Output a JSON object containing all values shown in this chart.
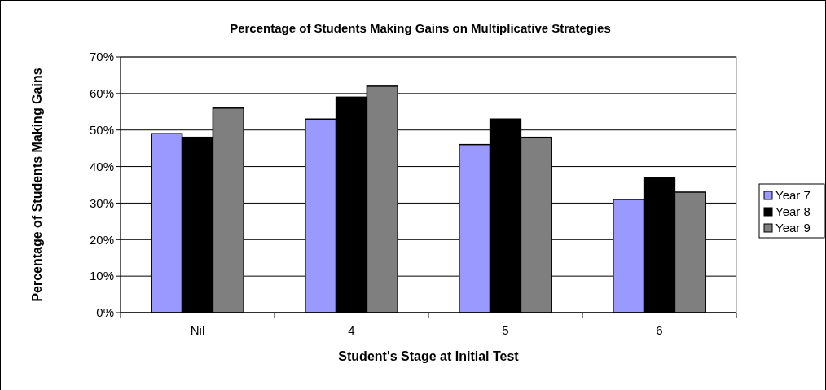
{
  "chart_data": {
    "type": "bar",
    "title": "Percentage of Students Making Gains on Multiplicative Strategies",
    "xlabel": "Student's Stage at Initial Test",
    "ylabel": "Percentage of Students Making Gains",
    "categories": [
      "Nil",
      "4",
      "5",
      "6"
    ],
    "series": [
      {
        "name": "Year 7",
        "color": "#9999ff",
        "values": [
          49,
          53,
          46,
          31
        ]
      },
      {
        "name": "Year 8",
        "color": "#000000",
        "values": [
          48,
          59,
          53,
          37
        ]
      },
      {
        "name": "Year 9",
        "color": "#7f7f7f",
        "values": [
          56,
          62,
          48,
          33
        ]
      }
    ],
    "ylim": [
      0,
      70
    ],
    "yticks": [
      {
        "value": 0,
        "label": "0%"
      },
      {
        "value": 10,
        "label": "10%"
      },
      {
        "value": 20,
        "label": "20%"
      },
      {
        "value": 30,
        "label": "30%"
      },
      {
        "value": 40,
        "label": "40%"
      },
      {
        "value": 50,
        "label": "50%"
      },
      {
        "value": 60,
        "label": "60%"
      },
      {
        "value": 70,
        "label": "70%"
      }
    ],
    "grid": "y",
    "legend": "right"
  }
}
